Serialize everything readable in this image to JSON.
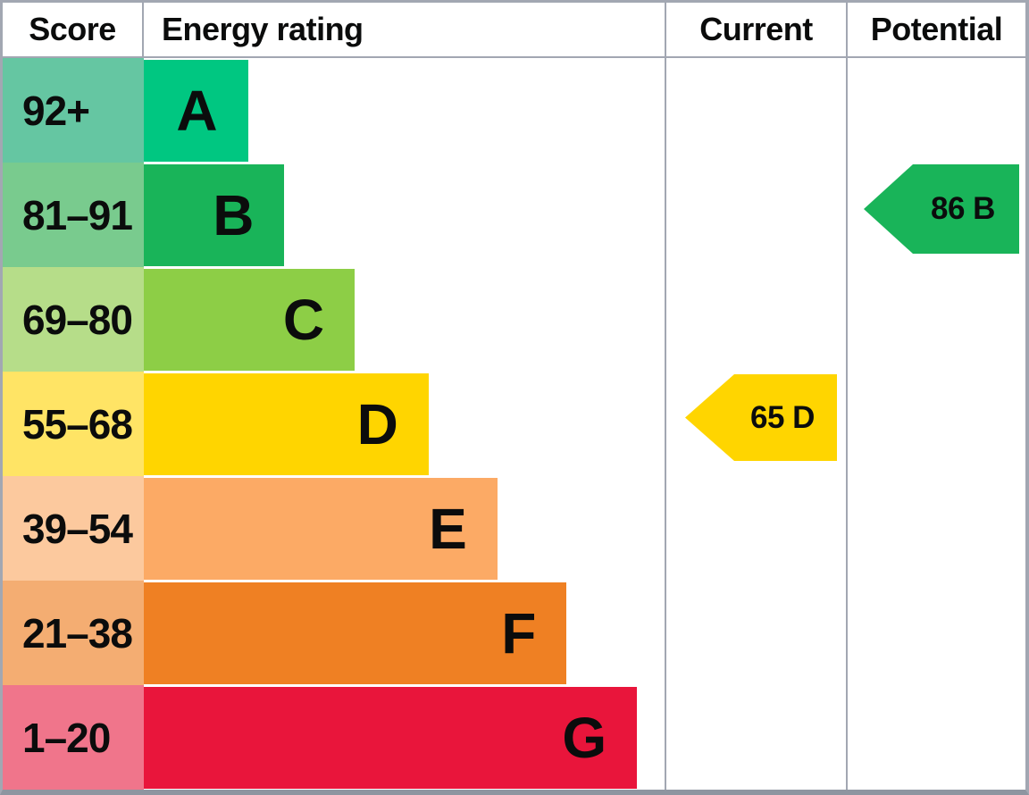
{
  "header": {
    "score": "Score",
    "energy_rating": "Energy rating",
    "current": "Current",
    "potential": "Potential"
  },
  "chart_data": {
    "type": "bar",
    "title": "Energy rating",
    "orientation": "horizontal",
    "columns": [
      "Score",
      "Energy rating",
      "Current",
      "Potential"
    ],
    "bands": [
      {
        "score_range": "92+",
        "letter": "A",
        "bar_width_pct": 20,
        "bar_color": "#00c781",
        "score_color": "#65c6a2"
      },
      {
        "score_range": "81–91",
        "letter": "B",
        "bar_width_pct": 27,
        "bar_color": "#19b459",
        "score_color": "#79cb8e"
      },
      {
        "score_range": "69–80",
        "letter": "C",
        "bar_width_pct": 40.5,
        "bar_color": "#8dce46",
        "score_color": "#b6dd89"
      },
      {
        "score_range": "55–68",
        "letter": "D",
        "bar_width_pct": 54.7,
        "bar_color": "#ffd500",
        "score_color": "#ffe465"
      },
      {
        "score_range": "39–54",
        "letter": "E",
        "bar_width_pct": 67.9,
        "bar_color": "#fcaa65",
        "score_color": "#fcc99e"
      },
      {
        "score_range": "21–38",
        "letter": "F",
        "bar_width_pct": 81.2,
        "bar_color": "#ef8023",
        "score_color": "#f4ad72"
      },
      {
        "score_range": "1–20",
        "letter": "G",
        "bar_width_pct": 94.7,
        "bar_color": "#e9153b",
        "score_color": "#f0758b"
      }
    ],
    "current": {
      "score": 65,
      "band": "D",
      "label": "65 D",
      "color": "#ffd500"
    },
    "potential": {
      "score": 86,
      "band": "B",
      "label": "86 B",
      "color": "#19b459"
    }
  },
  "colors": {
    "grid_line": "#a2a7b2",
    "bottom_border": "#8e95a0",
    "text": "#0b0c0c",
    "background": "#ffffff"
  }
}
